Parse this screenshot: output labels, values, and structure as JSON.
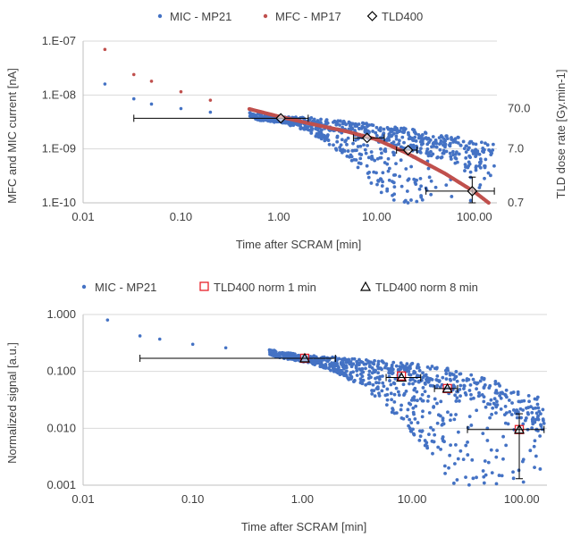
{
  "chart_data": [
    {
      "type": "scatter",
      "x_scale": "log",
      "y_scale": "log",
      "xlabel": "Time after SCRAM [min]",
      "ylabel": "MFC and MIC current [nA]",
      "y2label": "TLD dose rate [Gy.min-1]",
      "xlim": [
        0.01,
        170
      ],
      "ylim": [
        1e-10,
        1e-07
      ],
      "y2_ticks": [
        "70.0",
        "7.0",
        "0.7"
      ],
      "x_ticks": [
        "0.01",
        "0.10",
        "1.00",
        "10.00",
        "100.00"
      ],
      "y_ticks": [
        "1.E-07",
        "1.E-08",
        "1.E-09",
        "1.E-10"
      ],
      "legend_position": "top",
      "grid": "horizontal",
      "series": [
        {
          "name": "MIC - MP21",
          "color": "#4472C4",
          "marker": "dot",
          "axis": "left",
          "band": true,
          "x": [
            0.0167,
            0.033,
            0.05,
            0.1,
            0.2,
            0.5,
            1.0,
            2.0,
            5.0,
            10.0,
            20.0,
            50.0,
            100.0,
            160.0
          ],
          "y": [
            1.6e-08,
            8.5e-09,
            6.8e-09,
            5.6e-09,
            4.8e-09,
            4.1e-09,
            3.5e-09,
            2.8e-09,
            1.9e-09,
            1.4e-09,
            1e-09,
            6e-10,
            4e-10,
            3e-10
          ]
        },
        {
          "name": "MFC - MP17",
          "color": "#C0504D",
          "marker": "dot",
          "axis": "left",
          "band": false,
          "x": [
            0.0167,
            0.033,
            0.05,
            0.1,
            0.2,
            0.5,
            1.0,
            2.0,
            5.0,
            10.0,
            20.0,
            50.0,
            100.0,
            140.0
          ],
          "y": [
            7e-08,
            2.4e-08,
            1.8e-08,
            1.15e-08,
            8e-09,
            5.5e-09,
            4e-09,
            3e-09,
            2.1e-09,
            1.5e-09,
            8.5e-10,
            3.5e-10,
            1.6e-10,
            1e-10
          ]
        },
        {
          "name": "TLD400",
          "color": "#000000",
          "marker": "diamond",
          "axis": "right",
          "x": [
            1.05,
            8.0,
            21.0,
            95.0
          ],
          "y": [
            3.7e-09,
            1.6e-09,
            9.5e-10,
            1.65e-10
          ],
          "x_err": [
            [
              0.033,
              2.0
            ],
            [
              5.8,
              12.0
            ],
            [
              16.0,
              26.0
            ],
            [
              32.0,
              160.0
            ]
          ],
          "y_err": [
            null,
            null,
            null,
            [
              1e-10,
              3e-10
            ]
          ]
        }
      ]
    },
    {
      "type": "scatter",
      "x_scale": "log",
      "y_scale": "log",
      "xlabel": "Time after SCRAM [min]",
      "ylabel": "Normalized signal [a.u.]",
      "xlim": [
        0.01,
        170
      ],
      "ylim": [
        0.001,
        1.0
      ],
      "x_ticks": [
        "0.01",
        "0.10",
        "1.00",
        "10.00",
        "100.00"
      ],
      "y_ticks": [
        "1.000",
        "0.100",
        "0.010",
        "0.001"
      ],
      "legend_position": "top",
      "grid": "horizontal",
      "series": [
        {
          "name": "MIC - MP21",
          "color": "#4472C4",
          "marker": "dot",
          "band": true,
          "x": [
            0.0167,
            0.033,
            0.05,
            0.1,
            0.2,
            0.5,
            1.0,
            2.0,
            5.0,
            10.0,
            20.0,
            50.0,
            100.0,
            160.0
          ],
          "y": [
            0.8,
            0.42,
            0.37,
            0.3,
            0.26,
            0.21,
            0.17,
            0.13,
            0.09,
            0.068,
            0.048,
            0.025,
            0.012,
            0.008
          ]
        },
        {
          "name": "TLD400 norm 1 min",
          "color": "#E8202A",
          "marker": "square",
          "x": [
            1.05,
            8.0,
            21.0,
            95.0
          ],
          "y": [
            0.17,
            0.083,
            0.05,
            0.0095
          ]
        },
        {
          "name": "TLD400 norm 8 min",
          "color": "#000000",
          "marker": "triangle",
          "x": [
            1.05,
            8.0,
            21.0,
            95.0
          ],
          "y": [
            0.17,
            0.078,
            0.05,
            0.0095
          ],
          "x_err": [
            [
              0.033,
              2.0
            ],
            [
              5.8,
              12.0
            ],
            [
              16.0,
              26.0
            ],
            [
              32.0,
              160.0
            ]
          ],
          "y_err": [
            null,
            null,
            null,
            [
              0.0013,
              0.018
            ]
          ]
        }
      ]
    }
  ]
}
